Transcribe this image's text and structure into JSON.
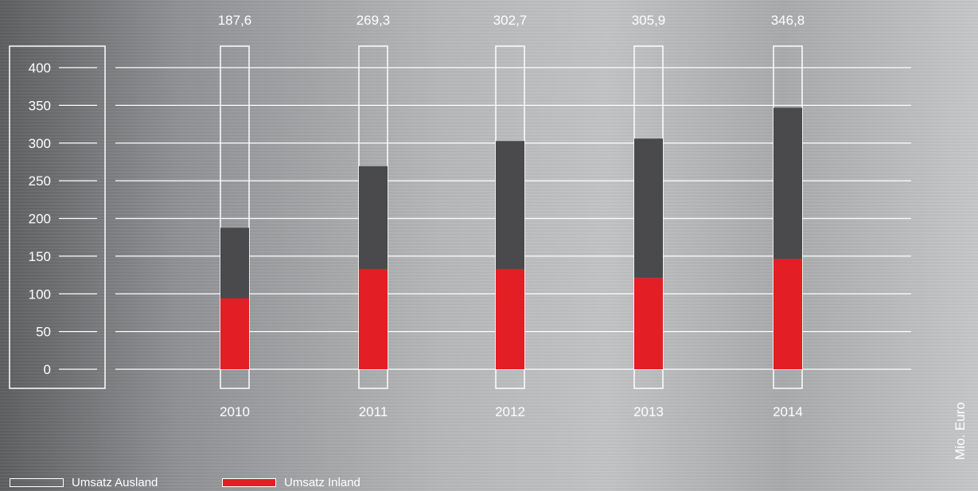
{
  "chart_data": {
    "type": "bar",
    "stacked": true,
    "categories": [
      "2010",
      "2011",
      "2012",
      "2013",
      "2014"
    ],
    "totals": [
      "187,6",
      "269,3",
      "302,7",
      "305,9",
      "346,8"
    ],
    "series": [
      {
        "name": "Umsatz Inland",
        "color": "#e31e24",
        "values": [
          94,
          133,
          133,
          121,
          146
        ]
      },
      {
        "name": "Umsatz Ausland",
        "color": "#4a4a4c",
        "values": [
          93.6,
          136.3,
          169.7,
          184.9,
          200.8
        ]
      }
    ],
    "yticks": [
      "0",
      "50",
      "100",
      "150",
      "200",
      "250",
      "300",
      "350",
      "400"
    ],
    "ylim": [
      0,
      400
    ],
    "unit": "Mio. Euro",
    "grid": true
  },
  "legend": {
    "ausland": "Umsatz Ausland",
    "inland": "Umsatz Inland"
  }
}
